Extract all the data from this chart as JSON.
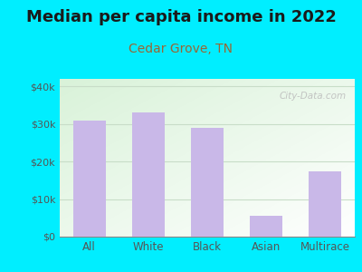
{
  "title": "Median per capita income in 2022",
  "subtitle": "Cedar Grove, TN",
  "categories": [
    "All",
    "White",
    "Black",
    "Asian",
    "Multirace"
  ],
  "values": [
    31000,
    33000,
    29000,
    5500,
    17500
  ],
  "bar_color": "#c9b8e8",
  "title_fontsize": 13,
  "subtitle_fontsize": 10,
  "subtitle_color": "#996633",
  "title_color": "#1a1a1a",
  "bg_outer": "#00eeff",
  "ylim": [
    0,
    42000
  ],
  "yticks": [
    0,
    10000,
    20000,
    30000,
    40000
  ],
  "ytick_labels": [
    "$0",
    "$10k",
    "$20k",
    "$30k",
    "$40k"
  ],
  "grid_color": "#c8ddc8",
  "tick_label_color": "#555555",
  "watermark_text": "City-Data.com",
  "watermark_color": "#bbbbbb"
}
